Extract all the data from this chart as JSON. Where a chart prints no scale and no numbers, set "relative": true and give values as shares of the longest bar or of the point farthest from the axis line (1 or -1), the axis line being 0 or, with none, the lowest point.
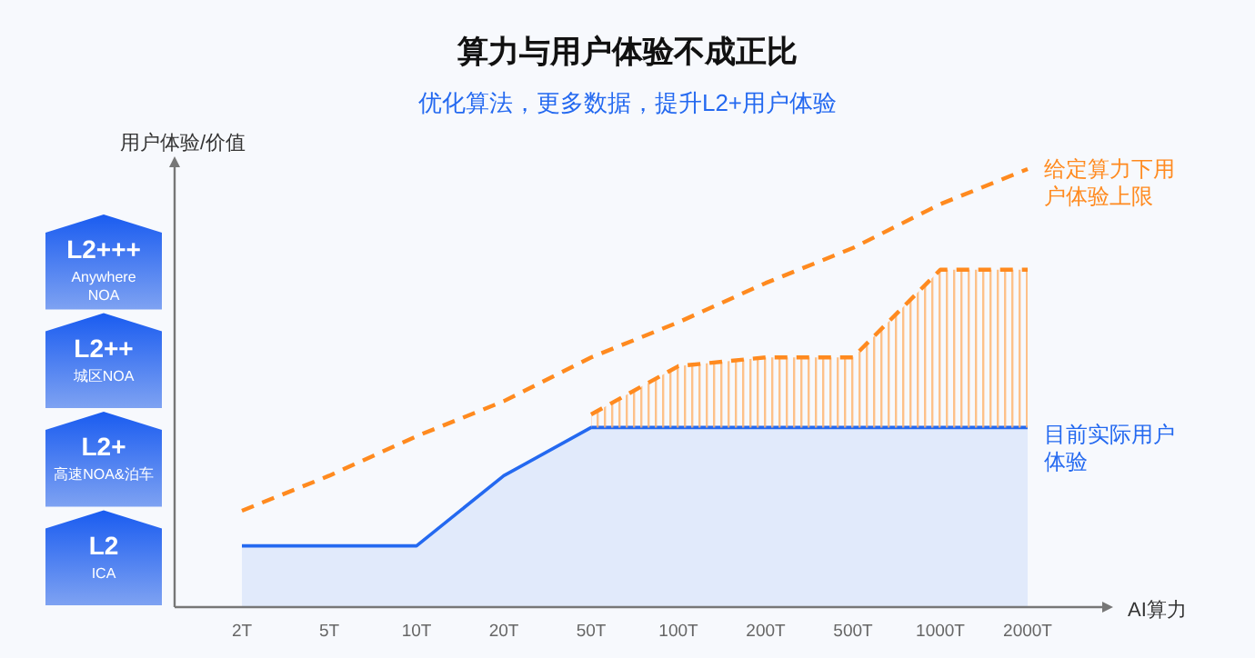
{
  "chart_data": {
    "type": "line",
    "title": "算力与用户体验不成正比",
    "subtitle": "优化算法，更多数据，提升L2+用户体验",
    "xlabel": "AI算力",
    "ylabel": "用户体验/价值",
    "relative": true,
    "categories": [
      "2T",
      "5T",
      "10T",
      "20T",
      "50T",
      "100T",
      "200T",
      "500T",
      "1000T",
      "2000T"
    ],
    "series": [
      {
        "type": "area",
        "name": "目前实际用户体验",
        "color": "#2469f0",
        "values": [
          0.14,
          0.14,
          0.14,
          0.3,
          0.41,
          0.41,
          0.41,
          0.41,
          0.41,
          0.41
        ]
      },
      {
        "type": "line",
        "color": "#ff8a1f",
        "line_style": "dashed",
        "values": [
          null,
          null,
          null,
          null,
          0.44,
          0.55,
          0.57,
          0.57,
          0.77,
          0.77
        ],
        "lower": [
          null,
          null,
          null,
          null,
          0.41,
          0.41,
          0.41,
          0.41,
          0.41,
          0.41
        ],
        "upper": [
          null,
          null,
          null,
          null,
          0.44,
          0.55,
          0.57,
          0.57,
          0.77,
          0.77
        ]
      },
      {
        "type": "line",
        "name": "给定算力下用户体验上限",
        "color": "#ff8a1f",
        "line_style": "dashed",
        "values": [
          0.22,
          0.3,
          0.39,
          0.47,
          0.57,
          0.65,
          0.74,
          0.82,
          0.92,
          1.0
        ]
      }
    ],
    "annotations": [
      "L2+++\nAnywhere\nNOA",
      "L2++\n城区NOA",
      "L2+\n高速NOA&泊车",
      "L2\nICA"
    ]
  }
}
